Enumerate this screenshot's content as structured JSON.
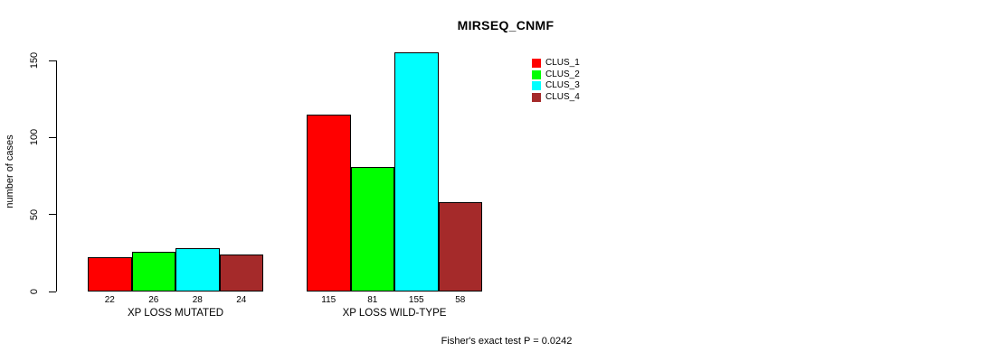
{
  "chart_data": {
    "type": "bar",
    "title": "MIRSEQ_CNMF",
    "ylabel": "number of cases",
    "ylim": [
      0,
      150
    ],
    "yticks": [
      0,
      50,
      100,
      150
    ],
    "grid": false,
    "legend_position": "top-right",
    "categories": [
      "XP LOSS MUTATED",
      "XP LOSS WILD-TYPE"
    ],
    "series": [
      {
        "name": "CLUS_1",
        "color": "#ff0000",
        "values": [
          22,
          115
        ]
      },
      {
        "name": "CLUS_2",
        "color": "#00ff00",
        "values": [
          26,
          81
        ]
      },
      {
        "name": "CLUS_3",
        "color": "#00ffff",
        "values": [
          28,
          155
        ]
      },
      {
        "name": "CLUS_4",
        "color": "#a52a2a",
        "values": [
          24,
          58
        ]
      }
    ],
    "groups": [
      {
        "label": "XP LOSS MUTATED",
        "values": [
          22,
          26,
          28,
          24
        ]
      },
      {
        "label": "XP LOSS WILD-TYPE",
        "values": [
          115,
          81,
          155,
          58
        ]
      }
    ],
    "bar_value_labels_shown": true,
    "footnote": "Fisher's exact test P = 0.0242"
  }
}
